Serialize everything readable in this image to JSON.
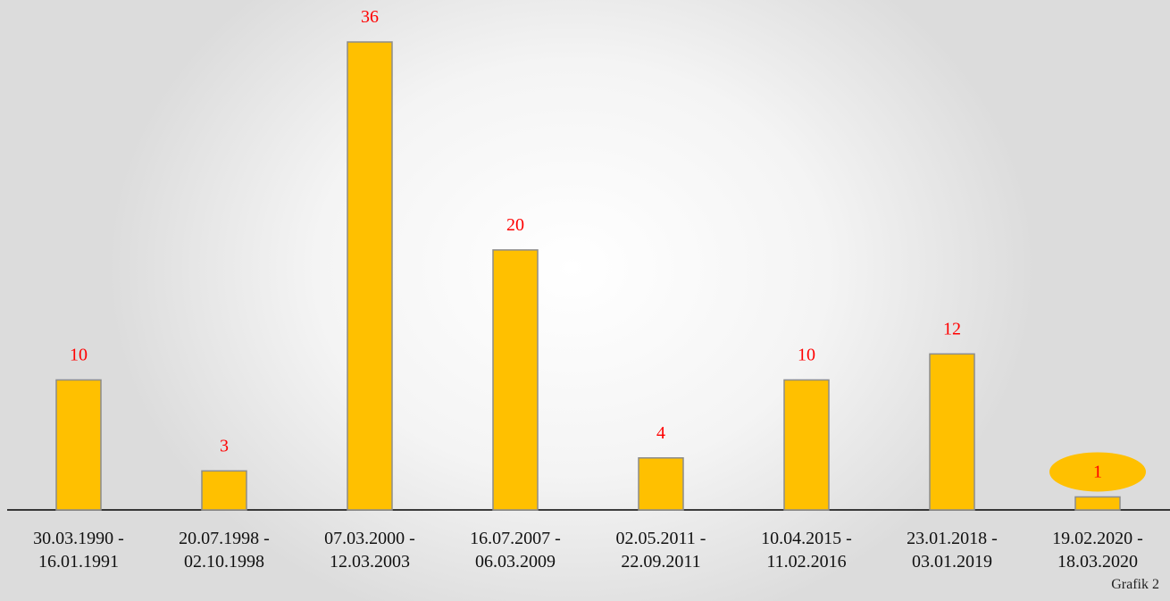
{
  "chart_data": {
    "type": "bar",
    "categories": [
      "30.03.1990 -\n16.01.1991",
      "20.07.1998 -\n02.10.1998",
      "07.03.2000 -\n12.03.2003",
      "16.07.2007 -\n06.03.2009",
      "02.05.2011 -\n22.09.2011",
      "10.04.2015 -\n11.02.2016",
      "23.01.2018 -\n03.01.2019",
      "19.02.2020 -\n18.03.2020"
    ],
    "values": [
      10,
      3,
      36,
      20,
      4,
      10,
      12,
      1
    ],
    "color": "#ffc000",
    "label_color": "#ff0000",
    "highlight_color": "#ffc000",
    "annotation": "Grafik 2"
  }
}
